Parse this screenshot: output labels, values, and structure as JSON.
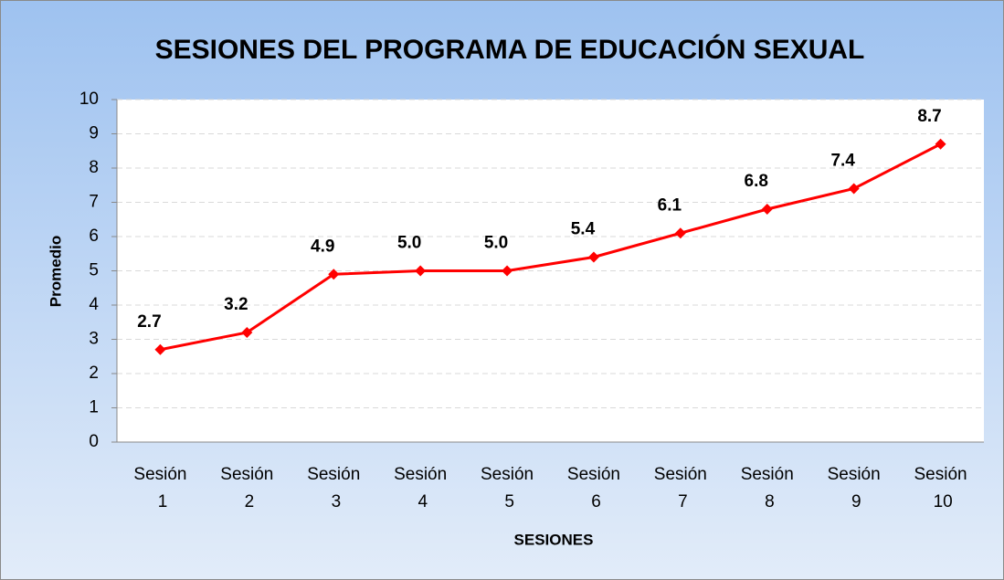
{
  "chart_data": {
    "type": "line",
    "title": "SESIONES DEL PROGRAMA DE EDUCACIÓN SEXUAL",
    "x_label": "SESIONES",
    "y_label": "Promedio",
    "categories": [
      "Sesión 1",
      "Sesión 2",
      "Sesión 3",
      "Sesión 4",
      "Sesión 5",
      "Sesión 6",
      "Sesión 7",
      "Sesión 8",
      "Sesión 9",
      "Sesión 10"
    ],
    "series": [
      {
        "name": "Promedio",
        "color": "#ff0000",
        "values": [
          2.7,
          3.2,
          4.9,
          5.0,
          5.0,
          5.4,
          6.1,
          6.8,
          7.4,
          8.7
        ],
        "value_labels": [
          "2.7",
          "3.2",
          "4.9",
          "5.0",
          "5.0",
          "5.4",
          "6.1",
          "6.8",
          "7.4",
          "8.7"
        ]
      }
    ],
    "ylim": [
      0,
      10
    ],
    "yticks": [
      0,
      1,
      2,
      3,
      4,
      5,
      6,
      7,
      8,
      9,
      10
    ],
    "grid": true
  }
}
